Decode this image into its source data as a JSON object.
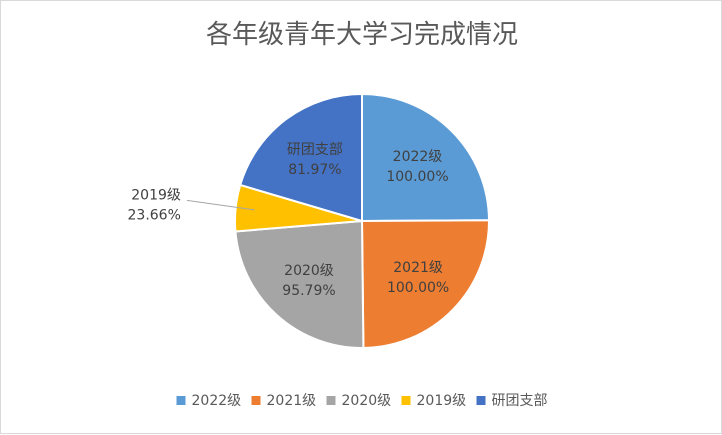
{
  "chart_data": {
    "type": "pie",
    "title": "各年级青年大学习完成情况",
    "categories": [
      "2022级",
      "2021级",
      "2020级",
      "2019级",
      "研团支部"
    ],
    "values": [
      100.0,
      100.0,
      95.79,
      23.66,
      81.97
    ],
    "value_labels": [
      "100.00%",
      "100.00%",
      "95.79%",
      "23.66%",
      "81.97%"
    ],
    "colors": [
      "#5b9bd5",
      "#ed7d31",
      "#a5a5a5",
      "#ffc000",
      "#4472c4"
    ],
    "legend": {
      "position": "bottom",
      "entries": [
        "2022级",
        "2021级",
        "2020级",
        "2019级",
        "研团支部"
      ]
    }
  }
}
